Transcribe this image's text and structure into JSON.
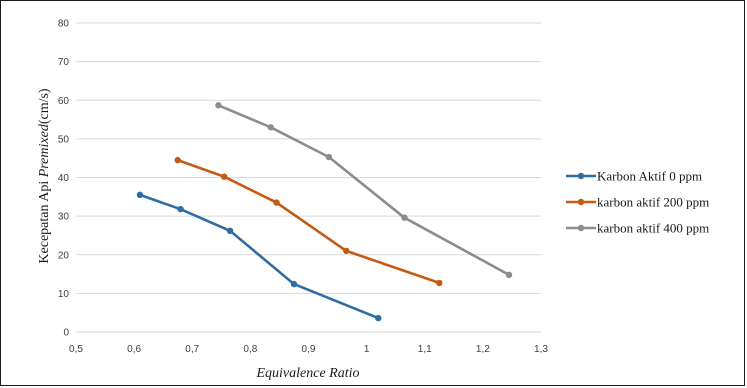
{
  "chart_data": {
    "type": "line",
    "title": "",
    "xlabel": "Equivalence Ratio",
    "ylabel": {
      "prefix": "Kecepatan Api ",
      "italic": "Premixed",
      "suffix": "(cm/s)"
    },
    "xlim": [
      0.5,
      1.3
    ],
    "ylim": [
      0,
      80
    ],
    "xticks": [
      "0,5",
      "0,6",
      "0,7",
      "0,8",
      "0,9",
      "1",
      "1,1",
      "1,2",
      "1,3"
    ],
    "yticks": [
      "0",
      "10",
      "20",
      "30",
      "40",
      "50",
      "60",
      "70",
      "80"
    ],
    "grid": "horizontal",
    "legend_position": "right",
    "series": [
      {
        "name": "Karbon Aktif 0 ppm",
        "color": "#2e6da4",
        "x": [
          0.61,
          0.68,
          0.765,
          0.875,
          1.02
        ],
        "y": [
          35.5,
          31.8,
          26.2,
          12.4,
          3.6
        ]
      },
      {
        "name": "karbon aktif 200 ppm",
        "color": "#c55a11",
        "x": [
          0.675,
          0.755,
          0.845,
          0.965,
          1.125
        ],
        "y": [
          44.5,
          40.2,
          33.5,
          21.0,
          12.7
        ]
      },
      {
        "name": "karbon aktif 400 ppm",
        "color": "#8c8c8c",
        "x": [
          0.745,
          0.835,
          0.935,
          1.065,
          1.245
        ],
        "y": [
          58.7,
          53.0,
          45.3,
          29.6,
          14.8
        ]
      }
    ]
  }
}
